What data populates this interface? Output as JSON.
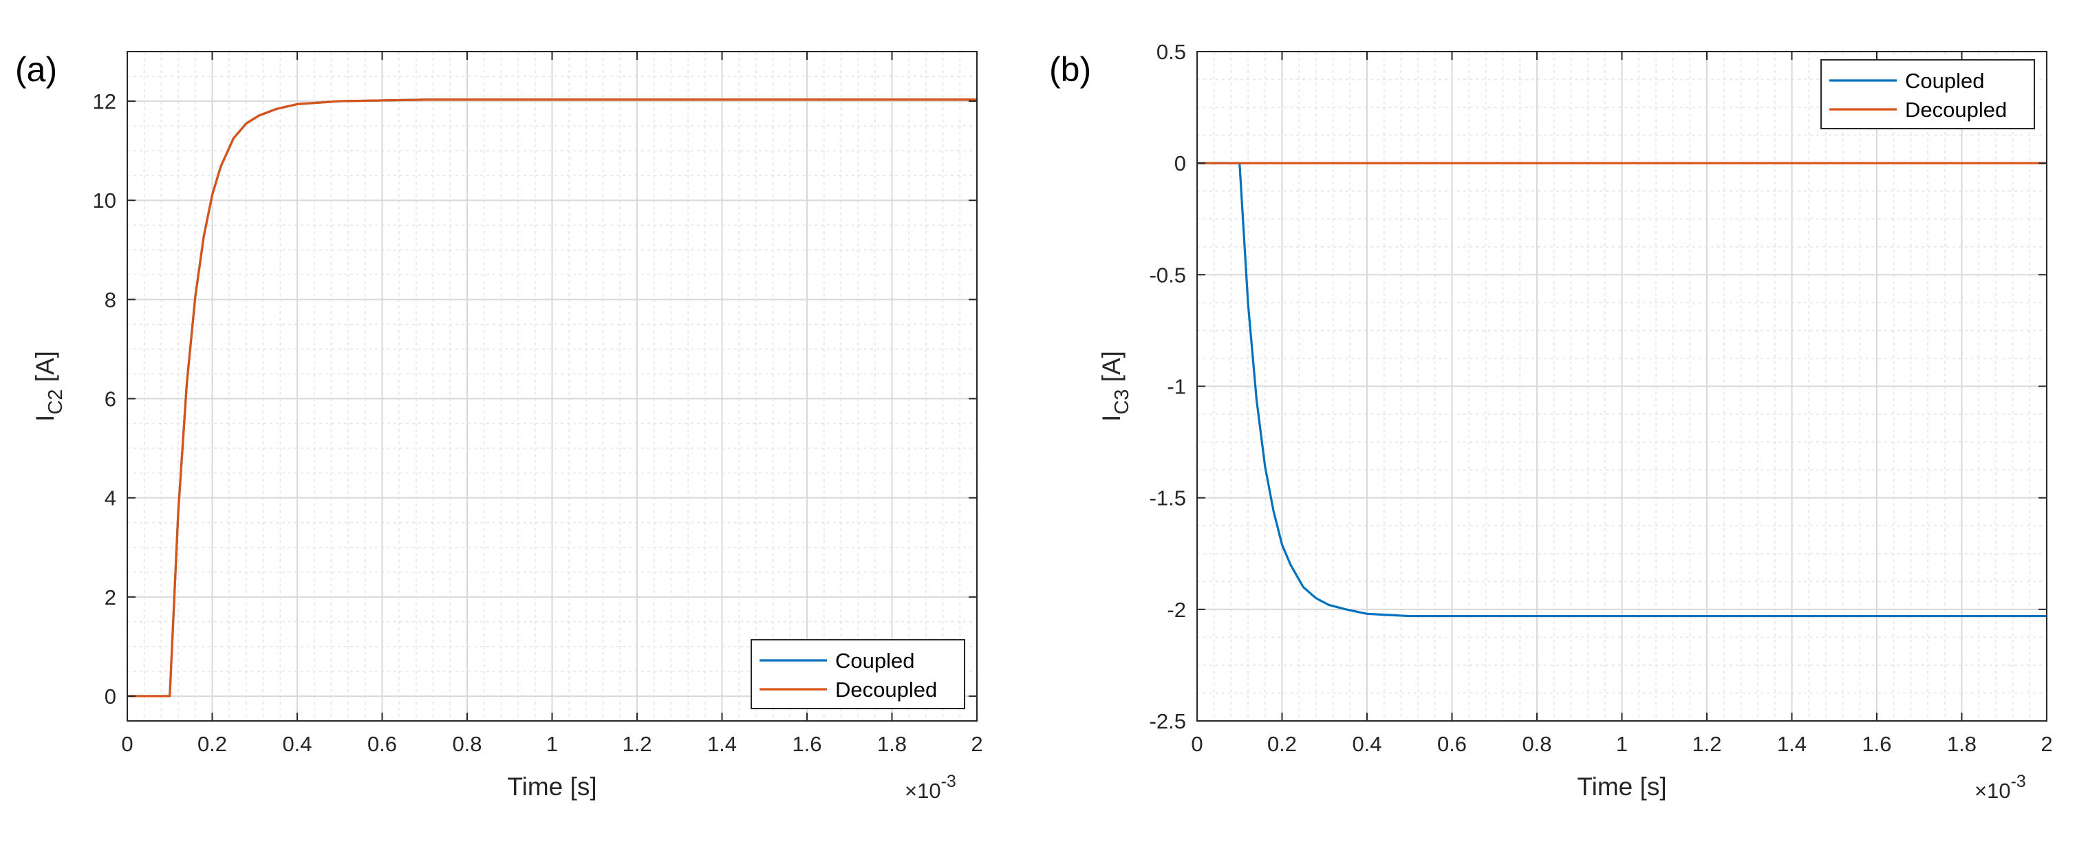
{
  "chart_data": [
    {
      "type": "line",
      "panel_label": "(a)",
      "xlabel": "Time [s]",
      "ylabel_main": "I",
      "ylabel_sub": "C2",
      "ylabel_unit": " [A]",
      "x_multiplier_base": "×10",
      "x_multiplier_exp": "-3",
      "xlim": [
        0,
        2
      ],
      "ylim": [
        -0.5,
        13
      ],
      "x_ticks": [
        0,
        0.2,
        0.4,
        0.6,
        0.8,
        1,
        1.2,
        1.4,
        1.6,
        1.8,
        2
      ],
      "x_tick_labels": [
        "0",
        "0.2",
        "0.4",
        "0.6",
        "0.8",
        "1",
        "1.2",
        "1.4",
        "1.6",
        "1.8",
        "2"
      ],
      "y_ticks": [
        0,
        2,
        4,
        6,
        8,
        10,
        12
      ],
      "y_tick_labels": [
        "0",
        "2",
        "4",
        "6",
        "8",
        "10",
        "12"
      ],
      "grid": true,
      "minor_grid": true,
      "legend_position": "bottom-right",
      "series": [
        {
          "name": "Coupled",
          "color": "#0072bd",
          "x": [
            0,
            0.1,
            0.12,
            0.14,
            0.16,
            0.18,
            0.2,
            0.22,
            0.25,
            0.28,
            0.31,
            0.35,
            0.4,
            0.5,
            0.7,
            1.0,
            2.0
          ],
          "y": [
            0,
            0,
            3.72,
            6.29,
            8.05,
            9.27,
            10.11,
            10.68,
            11.25,
            11.55,
            11.71,
            11.84,
            11.94,
            12.0,
            12.03,
            12.03,
            12.03
          ]
        },
        {
          "name": "Decoupled",
          "color": "#d95319",
          "x": [
            0,
            0.1,
            0.12,
            0.14,
            0.16,
            0.18,
            0.2,
            0.22,
            0.25,
            0.28,
            0.31,
            0.35,
            0.4,
            0.5,
            0.7,
            1.0,
            2.0
          ],
          "y": [
            0,
            0,
            3.72,
            6.29,
            8.05,
            9.27,
            10.11,
            10.68,
            11.25,
            11.55,
            11.71,
            11.84,
            11.94,
            12.0,
            12.03,
            12.03,
            12.03
          ]
        }
      ]
    },
    {
      "type": "line",
      "panel_label": "(b)",
      "xlabel": "Time [s]",
      "ylabel_main": "I",
      "ylabel_sub": "C3",
      "ylabel_unit": " [A]",
      "x_multiplier_base": "×10",
      "x_multiplier_exp": "-3",
      "xlim": [
        0,
        2
      ],
      "ylim": [
        -2.5,
        0.5
      ],
      "x_ticks": [
        0,
        0.2,
        0.4,
        0.6,
        0.8,
        1,
        1.2,
        1.4,
        1.6,
        1.8,
        2
      ],
      "x_tick_labels": [
        "0",
        "0.2",
        "0.4",
        "0.6",
        "0.8",
        "1",
        "1.2",
        "1.4",
        "1.6",
        "1.8",
        "2"
      ],
      "y_ticks": [
        -2.5,
        -2,
        -1.5,
        -1,
        -0.5,
        0,
        0.5
      ],
      "y_tick_labels": [
        "-2.5",
        "-2",
        "-1.5",
        "-1",
        "-0.5",
        "0",
        "0.5"
      ],
      "grid": true,
      "minor_grid": true,
      "legend_position": "top-right",
      "series": [
        {
          "name": "Coupled",
          "color": "#0072bd",
          "x": [
            0,
            0.1,
            0.12,
            0.14,
            0.16,
            0.18,
            0.2,
            0.22,
            0.25,
            0.28,
            0.31,
            0.35,
            0.4,
            0.5,
            0.7,
            1.0,
            2.0
          ],
          "y": [
            0,
            0,
            -0.63,
            -1.06,
            -1.36,
            -1.56,
            -1.71,
            -1.8,
            -1.9,
            -1.95,
            -1.98,
            -2.0,
            -2.02,
            -2.03,
            -2.03,
            -2.03,
            -2.03
          ]
        },
        {
          "name": "Decoupled",
          "color": "#d95319",
          "x": [
            0,
            2.0
          ],
          "y": [
            0,
            0
          ]
        }
      ]
    }
  ]
}
